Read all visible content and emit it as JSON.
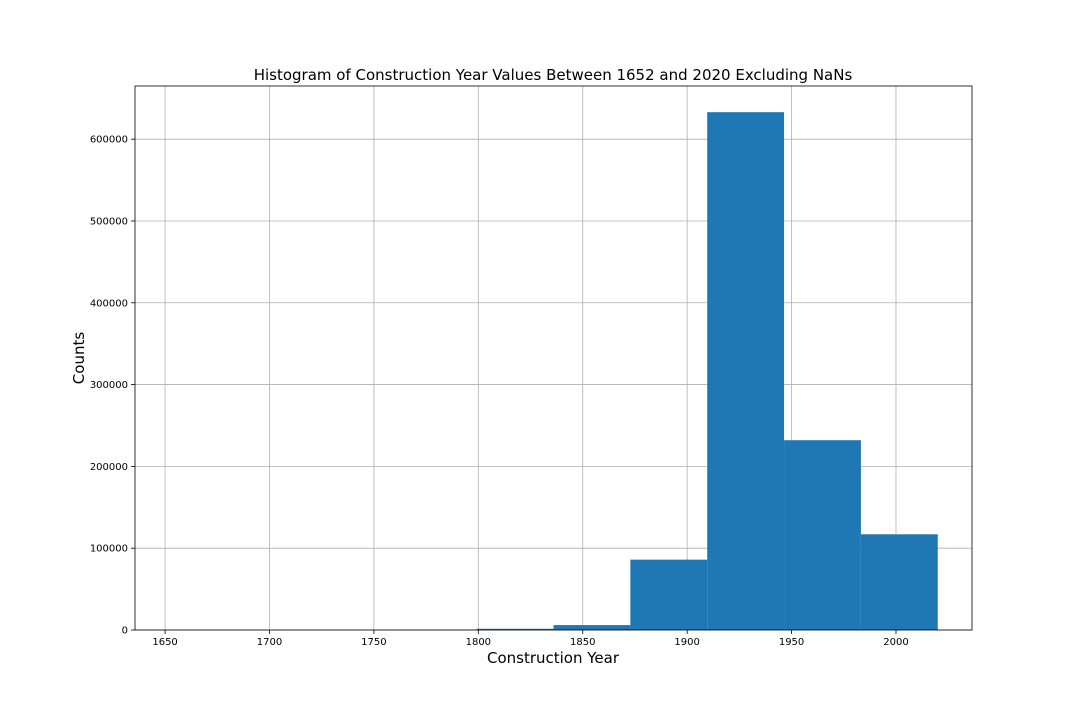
{
  "chart_data": {
    "type": "bar",
    "title": "Histogram of Construction Year Values Between 1652 and 2020 Excluding NaNs",
    "xlabel": "Construction Year",
    "ylabel": "Counts",
    "xlim": [
      1635.6,
      2036.4
    ],
    "ylim": [
      0,
      665000
    ],
    "xticks": [
      1650,
      1700,
      1750,
      1800,
      1850,
      1900,
      1950,
      2000
    ],
    "yticks": [
      0,
      100000,
      200000,
      300000,
      400000,
      500000,
      600000
    ],
    "grid": true,
    "bar_color": "#1f77b4",
    "bins": [
      {
        "x0": 1652.0,
        "x1": 1688.8,
        "count": 0
      },
      {
        "x0": 1688.8,
        "x1": 1725.6,
        "count": 0
      },
      {
        "x0": 1725.6,
        "x1": 1762.4,
        "count": 0
      },
      {
        "x0": 1762.4,
        "x1": 1799.2,
        "count": 200
      },
      {
        "x0": 1799.2,
        "x1": 1836.0,
        "count": 1500
      },
      {
        "x0": 1836.0,
        "x1": 1872.8,
        "count": 6000
      },
      {
        "x0": 1872.8,
        "x1": 1909.6,
        "count": 86000
      },
      {
        "x0": 1909.6,
        "x1": 1946.4,
        "count": 633000
      },
      {
        "x0": 1946.4,
        "x1": 1983.2,
        "count": 232000
      },
      {
        "x0": 1983.2,
        "x1": 2020.0,
        "count": 117000
      }
    ]
  }
}
